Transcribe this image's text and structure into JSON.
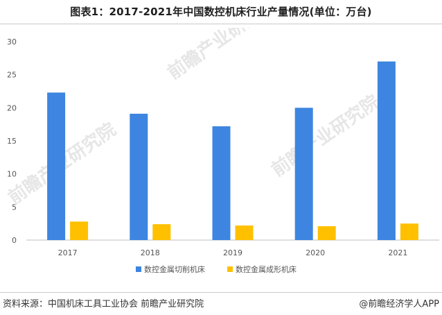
{
  "title": "图表1：2017-2021年中国数控机床行业产量情况(单位：万台)",
  "watermark": "前瞻产业研究院",
  "footer": {
    "source": "资料来源：中国机床工具工业协会 前瞻产业研究院",
    "credit": "@前瞻经济学人APP"
  },
  "chart_data": {
    "type": "bar",
    "title": "图表1：2017-2021年中国数控机床行业产量情况(单位：万台)",
    "categories": [
      "2017",
      "2018",
      "2019",
      "2020",
      "2021"
    ],
    "series": [
      {
        "name": "数控金属切削机床",
        "color": "#3d85e0",
        "values": [
          22.3,
          19.1,
          17.2,
          20.0,
          27.0
        ]
      },
      {
        "name": "数控金属成形机床",
        "color": "#ffc000",
        "values": [
          2.8,
          2.4,
          2.2,
          2.1,
          2.5
        ]
      }
    ],
    "ylim": [
      0,
      30
    ],
    "yticks": [
      "0",
      "5",
      "10",
      "15",
      "20",
      "25",
      "30"
    ],
    "grid": false,
    "legend_position": "bottom"
  }
}
